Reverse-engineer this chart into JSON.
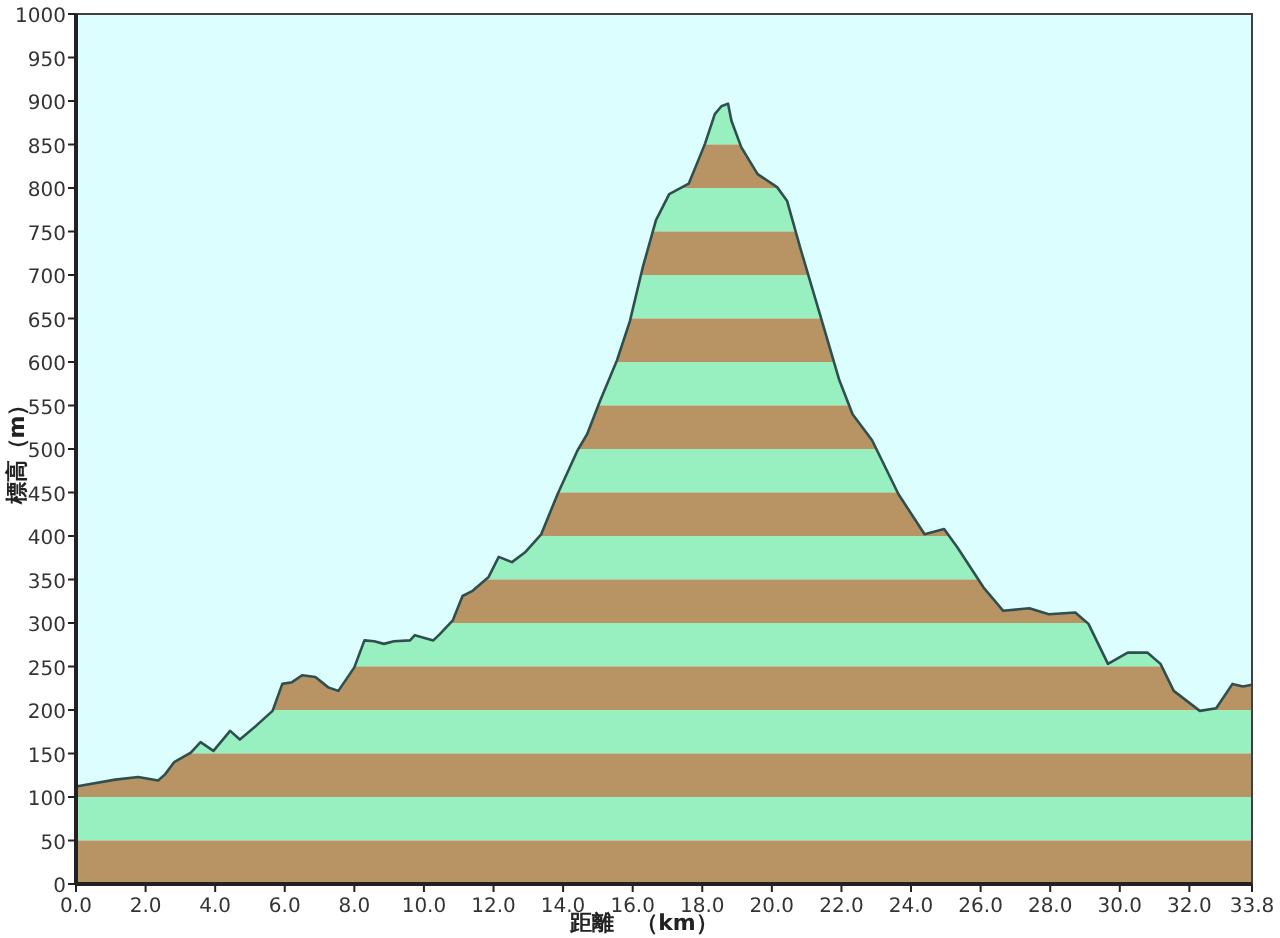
{
  "chart_data": {
    "type": "area",
    "xlabel": "距離　（km）",
    "ylabel": "標高（m）",
    "xlim": [
      0,
      33.8
    ],
    "ylim": [
      0,
      1000
    ],
    "xticks": [
      {
        "value": 0,
        "label": "0.0"
      },
      {
        "value": 2,
        "label": "2.0"
      },
      {
        "value": 4,
        "label": "4.0"
      },
      {
        "value": 6,
        "label": "6.0"
      },
      {
        "value": 8,
        "label": "8.0"
      },
      {
        "value": 10,
        "label": "10.0"
      },
      {
        "value": 12,
        "label": "12.0"
      },
      {
        "value": 14,
        "label": "14.0"
      },
      {
        "value": 16,
        "label": "16.0"
      },
      {
        "value": 18,
        "label": "18.0"
      },
      {
        "value": 20,
        "label": "20.0"
      },
      {
        "value": 22,
        "label": "22.0"
      },
      {
        "value": 24,
        "label": "24.0"
      },
      {
        "value": 26,
        "label": "26.0"
      },
      {
        "value": 28,
        "label": "28.0"
      },
      {
        "value": 30,
        "label": "30.0"
      },
      {
        "value": 32,
        "label": "32.0"
      },
      {
        "value": 33.8,
        "label": "33.8"
      }
    ],
    "yticks": [
      0,
      50,
      100,
      150,
      200,
      250,
      300,
      350,
      400,
      450,
      500,
      550,
      600,
      650,
      700,
      750,
      800,
      850,
      900,
      950,
      1000
    ],
    "grid": false,
    "series": [
      {
        "color": "#2f4f4f",
        "x": [
          0,
          1.13,
          1.79,
          2.36,
          2.56,
          2.82,
          3.3,
          3.58,
          3.95,
          4.43,
          4.71,
          5.18,
          5.65,
          5.93,
          6.21,
          6.5,
          6.88,
          7.25,
          7.54,
          8.0,
          8.29,
          8.57,
          8.85,
          9.14,
          9.6,
          9.74,
          10.27,
          10.45,
          10.83,
          11.11,
          11.4,
          11.86,
          12.15,
          12.53,
          12.9,
          13.37,
          13.84,
          14.41,
          14.69,
          15.07,
          15.55,
          15.92,
          16.29,
          16.67,
          17.05,
          17.61,
          18.08,
          18.36,
          18.55,
          18.74,
          18.84,
          19.12,
          19.59,
          20.15,
          20.44,
          20.81,
          21.38,
          21.94,
          22.32,
          22.88,
          23.64,
          24.39,
          24.95,
          25.33,
          26.08,
          26.65,
          27.4,
          27.96,
          28.72,
          29.1,
          29.66,
          30.23,
          30.79,
          31.17,
          31.55,
          32.3,
          32.77,
          33.24,
          33.54,
          33.8
        ],
        "values": [
          112,
          120,
          123,
          119,
          126,
          140,
          151,
          163,
          153,
          176,
          166,
          182,
          199,
          230,
          232,
          240,
          238,
          226,
          222,
          249,
          280,
          279,
          276,
          279,
          280,
          286,
          280,
          287,
          303,
          331,
          337,
          353,
          376,
          370,
          381,
          402,
          448,
          498,
          517,
          556,
          602,
          647,
          709,
          763,
          793,
          805,
          851,
          885,
          894,
          897,
          877,
          847,
          816,
          801,
          785,
          732,
          655,
          579,
          540,
          510,
          448,
          402,
          408,
          387,
          341,
          314,
          317,
          310,
          312,
          299,
          253,
          266,
          266,
          253,
          222,
          199,
          202,
          230,
          227,
          229
        ]
      }
    ]
  }
}
